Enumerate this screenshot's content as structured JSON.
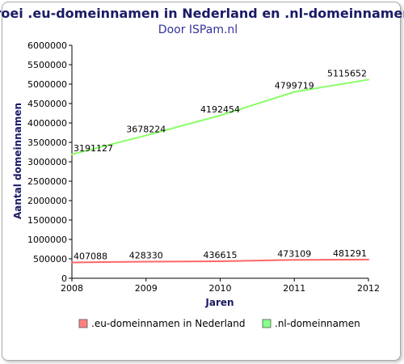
{
  "chart_data": {
    "type": "line",
    "title": "Groei .eu-domeinnamen in Nederland en .nl-domeinnamen",
    "subtitle": "Door ISPam.nl",
    "xlabel": "Jaren",
    "ylabel": "Aantal domeinnamen",
    "x": [
      2008,
      2009,
      2010,
      2011,
      2012
    ],
    "xlim": [
      2008,
      2012
    ],
    "ylim": [
      0,
      6000000
    ],
    "yticks": [
      0,
      500000,
      1000000,
      1500000,
      2000000,
      2500000,
      3000000,
      3500000,
      4000000,
      4500000,
      5000000,
      5500000,
      6000000
    ],
    "grid": false,
    "legend_position": "bottom",
    "series": [
      {
        "name": ".eu-domeinnamen in Nederland",
        "color": "#ff6666",
        "legend_fill": "#ff8080",
        "values": [
          407088,
          428330,
          436615,
          473109,
          481291
        ]
      },
      {
        "name": ".nl-domeinnamen",
        "color": "#88ff66",
        "legend_fill": "#88ff88",
        "values": [
          3191127,
          3678224,
          4192454,
          4799719,
          5115652
        ]
      }
    ]
  }
}
